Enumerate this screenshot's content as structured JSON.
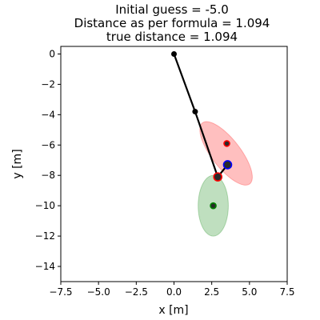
{
  "chart_data": {
    "type": "scatter",
    "title_lines": [
      "Initial guess = -5.0",
      "Distance as per formula = 1.094",
      "true distance = 1.094"
    ],
    "xlabel": "x [m]",
    "ylabel": "y [m]",
    "xlim": [
      -7.5,
      7.5
    ],
    "ylim": [
      -15,
      0.5
    ],
    "grid": false,
    "x_ticks": [
      -7.5,
      -5.0,
      -2.5,
      0.0,
      2.5,
      5.0,
      7.5
    ],
    "x_tick_labels": [
      "−7.5",
      "−5.0",
      "−2.5",
      "0.0",
      "2.5",
      "5.0",
      "7.5"
    ],
    "y_ticks": [
      0,
      -2,
      -4,
      -6,
      -8,
      -10,
      -12,
      -14
    ],
    "y_tick_labels": [
      "0",
      "−2",
      "−4",
      "−6",
      "−8",
      "−10",
      "−12",
      "−14"
    ],
    "arm": {
      "color": "#000000",
      "points": [
        [
          0.0,
          0.0
        ],
        [
          1.4,
          -3.8
        ],
        [
          2.9,
          -8.1
        ],
        [
          3.55,
          -7.3
        ]
      ]
    },
    "ellipses": [
      {
        "color": "#ff0000",
        "opacity": 0.25,
        "center": [
          3.45,
          -6.55
        ],
        "semi_axis_major": 2.55,
        "semi_axis_minor": 0.95,
        "angle_deg": -52
      },
      {
        "color": "#008000",
        "opacity": 0.25,
        "center": [
          2.6,
          -10.0
        ],
        "semi_axis_major": 2.0,
        "semi_axis_minor": 1.0,
        "angle_deg": 90
      }
    ],
    "markers": [
      {
        "x": 3.5,
        "y": -5.9,
        "face": "#2a2a2a",
        "edge": "#ff0000",
        "size": 3.5
      },
      {
        "x": 2.6,
        "y": -10.0,
        "face": "#2a2a2a",
        "edge": "#008000",
        "size": 3.5
      },
      {
        "x": 2.9,
        "y": -8.1,
        "face": "#2a2a2a",
        "edge": "#ff0000",
        "size": 5
      },
      {
        "x": 3.55,
        "y": -7.3,
        "face": "#2a2a2a",
        "edge": "#0000ff",
        "size": 5
      }
    ]
  }
}
